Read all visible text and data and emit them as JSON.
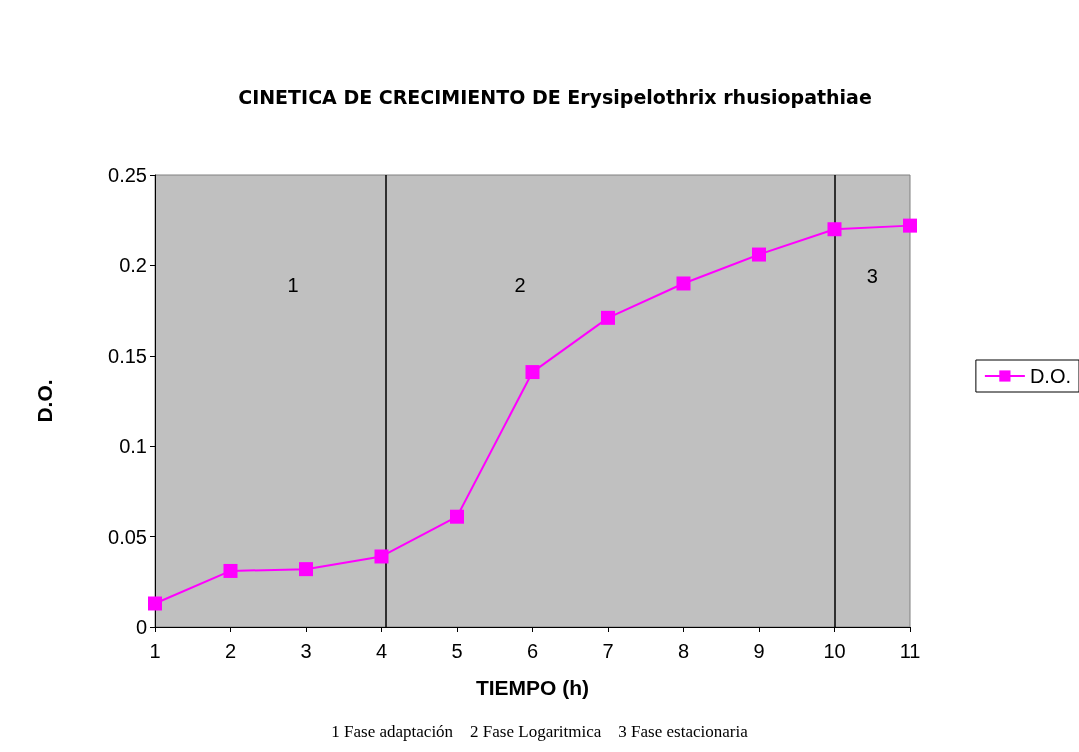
{
  "chart_data": {
    "type": "line",
    "title": "CINETICA DE CRECIMIENTO DE Erysipelothrix rhusiopathiae",
    "xlabel": "TIEMPO (h)",
    "ylabel": "D.O.",
    "x": [
      1,
      2,
      3,
      4,
      5,
      6,
      7,
      8,
      9,
      10,
      11
    ],
    "series": [
      {
        "name": "D.O.",
        "color": "#ff00ff",
        "values": [
          0.013,
          0.031,
          0.032,
          0.039,
          0.061,
          0.141,
          0.171,
          0.19,
          0.206,
          0.22,
          0.222
        ]
      }
    ],
    "xlim": [
      1,
      11
    ],
    "xticks": [
      1,
      2,
      3,
      4,
      5,
      6,
      7,
      8,
      9,
      10,
      11
    ],
    "ylim": [
      0,
      0.25
    ],
    "yticks": [
      0,
      0.05,
      0.1,
      0.15,
      0.2,
      0.25
    ],
    "ref_lines": [
      {
        "axis": "x",
        "value": 4.05,
        "color": "#000000"
      },
      {
        "axis": "x",
        "value": 10,
        "color": "#000000"
      }
    ],
    "annotations": [
      "1",
      "2",
      "3",
      "1 Fase adaptación    2 Fase Logaritmica    3 Fase estacionaria"
    ],
    "grid": false,
    "legend": "right",
    "marker": "square",
    "line_style": "solid"
  }
}
